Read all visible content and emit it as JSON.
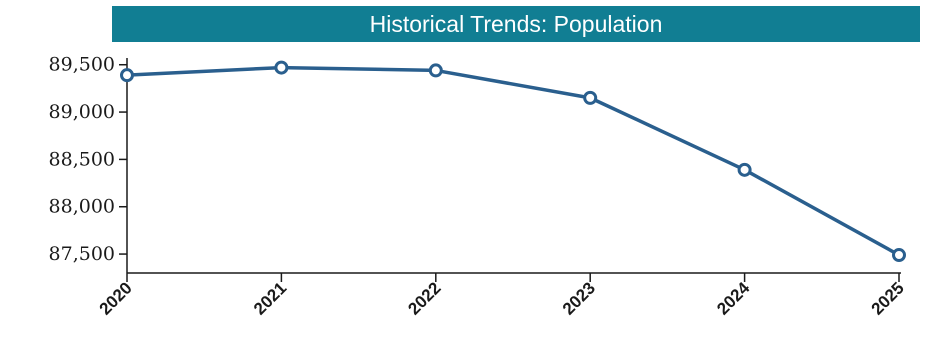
{
  "chart_data": {
    "type": "line",
    "title": "Historical Trends: Population",
    "x": [
      "2020",
      "2021",
      "2022",
      "2023",
      "2024",
      "2025"
    ],
    "series": [
      {
        "values": [
          89390,
          89470,
          89440,
          89150,
          88390,
          87490
        ]
      }
    ],
    "yticks": [
      87500,
      88000,
      88500,
      89000,
      89500
    ],
    "ytick_labels": [
      "87,500",
      "88,000",
      "88,500",
      "89,000",
      "89,500"
    ],
    "ylim": [
      87300,
      89550
    ],
    "grid": false,
    "legend": "none",
    "colors": {
      "title_bg": "#117e93",
      "line": "#2a5f8e",
      "axis": "#1a1a1a"
    }
  }
}
